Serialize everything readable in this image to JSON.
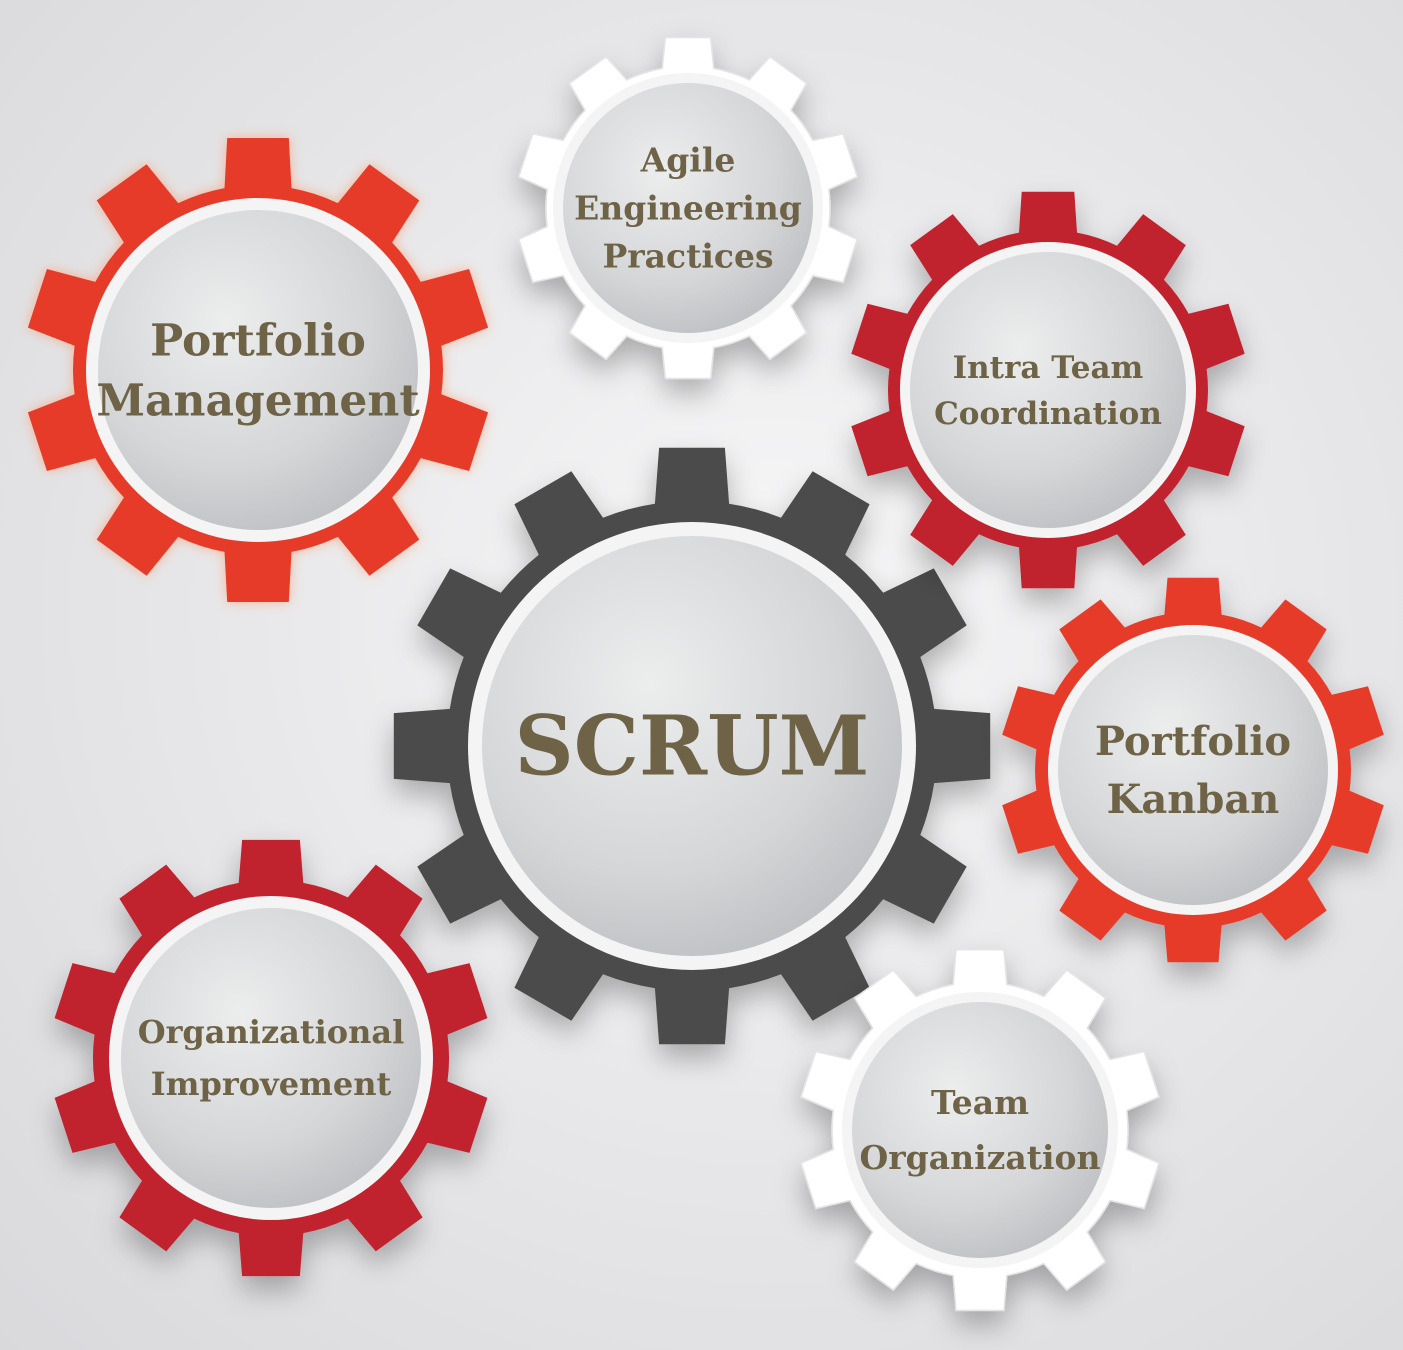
{
  "colors": {
    "orange_red": "#e73a2c",
    "crimson": "#c0232f",
    "dark_gray": "#4b4b4c",
    "white": "#ffffff",
    "label_text": "#6e6346",
    "hub_light": "#e8e9eb",
    "hub_dark": "#bfc1c4"
  },
  "gears": [
    {
      "id": "scrum",
      "label_lines": [
        "SCRUM"
      ],
      "color": "dark_gray",
      "teeth": 12
    },
    {
      "id": "portfolio-management",
      "label_lines": [
        "Portfolio",
        "Management"
      ],
      "color": "orange_red",
      "teeth": 10
    },
    {
      "id": "agile-engineering-practices",
      "label_lines": [
        "Agile",
        "Engineering",
        "Practices"
      ],
      "color": "white",
      "teeth": 10
    },
    {
      "id": "intra-team-coordination",
      "label_lines": [
        "Intra Team",
        "Coordination"
      ],
      "color": "crimson",
      "teeth": 10
    },
    {
      "id": "portfolio-kanban",
      "label_lines": [
        "Portfolio",
        "Kanban"
      ],
      "color": "orange_red",
      "teeth": 10
    },
    {
      "id": "organizational-improvement",
      "label_lines": [
        "Organizational",
        "Improvement"
      ],
      "color": "crimson",
      "teeth": 10
    },
    {
      "id": "team-organization",
      "label_lines": [
        "Team",
        "Organization"
      ],
      "color": "white",
      "teeth": 10
    }
  ]
}
